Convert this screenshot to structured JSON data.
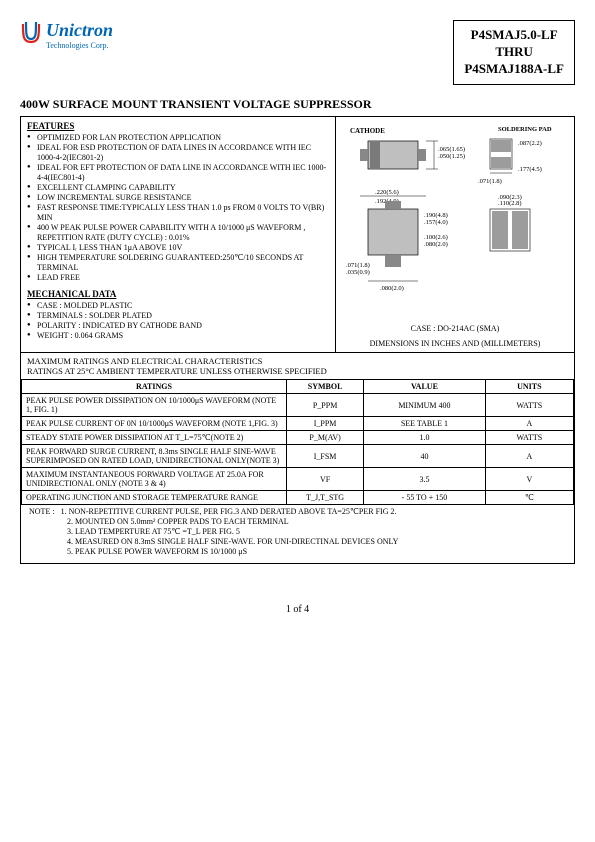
{
  "logo": {
    "brand": "Unictron",
    "tagline": "Technologies Corp.",
    "brand_color": "#0066b3",
    "accent_color": "#d9261c"
  },
  "part_box": {
    "line1": "P4SMAJ5.0-LF",
    "line2": "THRU",
    "line3": "P4SMAJ188A-LF"
  },
  "title": "400W SURFACE MOUNT TRANSIENT VOLTAGE SUPPRESSOR",
  "features": {
    "heading": "FEATURES",
    "items": [
      "OPTIMIZED FOR LAN PROTECTION APPLICATION",
      "IDEAL FOR ESD PROTECTION OF DATA LINES IN ACCORDANCE WITH IEC 1000-4-2(IEC801-2)",
      "IDEAL FOR EFT PROTECTION OF DATA LINE IN ACCORDANCE WITH IEC 1000-4-4(IEC801-4)",
      "EXCELLENT CLAMPING CAPABILITY",
      "LOW INCREMENTAL SURGE RESISTANCE",
      "FAST RESPONSE TIME:TYPICALLY LESS THAN 1.0 ps FROM 0 VOLTS TO V(BR) MIN",
      "400 W PEAK PULSE POWER CAPABILITY WITH A 10/1000 μS WAVEFORM , REPETITION RATE (DUTY CYCLE) : 0.01%",
      "TYPICAL Iᵣ LESS THAN 1μA ABOVE 10V",
      "HIGH TEMPERATURE SOLDERING GUARANTEED:250℃/10 SECONDS AT TERMINAL",
      "LEAD FREE"
    ]
  },
  "mechanical": {
    "heading": "MECHANICAL DATA",
    "items": [
      "CASE : MOLDED PLASTIC",
      "TERMINALS : SOLDER PLATED",
      "POLARITY : INDICATED BY CATHODE BAND",
      "WEIGHT : 0.064 GRAMS"
    ]
  },
  "diagram": {
    "cathode": "CATHODE",
    "soldering_pad": "SOLDERING PAD",
    "dims": {
      "a": ".065(1.65)",
      "a2": ".050(1.25)",
      "b": ".087(2.2)",
      "c": ".071(1.8)",
      "d": ".177(4.5)",
      "e": ".220(5.6)",
      "e2": ".192(4.9)",
      "f": ".190(4.8)",
      "f2": ".157(4.0)",
      "g": ".100(2.6)",
      "g2": ".080(2.0)",
      "h": ".071(1.8)",
      "h2": ".035(0.9)",
      "i": ".080(2.0)",
      "j": ".110(2.8)",
      "j2": ".090(2.3)"
    },
    "case": "CASE : DO-214AC (SMA)",
    "dim_note": "DIMENSIONS IN INCHES AND (MILLIMETERS)"
  },
  "ratings_section": {
    "line1": "MAXIMUM RATINGS AND ELECTRICAL CHARACTERISTICS",
    "line2": "RATINGS AT 25°C AMBIENT TEMPERATURE UNLESS OTHERWISE SPECIFIED"
  },
  "ratings_table": {
    "headers": [
      "RATINGS",
      "SYMBOL",
      "VALUE",
      "UNITS"
    ],
    "rows": [
      [
        "PEAK PULSE POWER DISSIPATION ON 10/1000μS WAVEFORM (NOTE 1, FIG. 1)",
        "P_PPM",
        "MINIMUM 400",
        "WATTS"
      ],
      [
        "PEAK PULSE CURRENT OF 0N 10/1000μS WAVEFORM (NOTE 1,FIG. 3)",
        "I_PPM",
        "SEE TABLE 1",
        "A"
      ],
      [
        "STEADY STATE POWER DISSIPATION AT T_L=75℃(NOTE 2)",
        "P_M(AV)",
        "1.0",
        "WATTS"
      ],
      [
        "PEAK FORWARD SURGE CURRENT, 8.3ms SINGLE HALF SINE-WAVE SUPERIMPOSED ON RATED LOAD, UNIDIRECTIONAL ONLY(NOTE 3)",
        "I_FSM",
        "40",
        "A"
      ],
      [
        "MAXIMUM INSTANTANEOUS FORWARD VOLTAGE AT 25.0A FOR UNIDIRECTIONAL ONLY (NOTE 3 & 4)",
        "VF",
        "3.5",
        "V"
      ],
      [
        "OPERATING JUNCTION AND STORAGE TEMPERATURE RANGE",
        "T_J,T_STG",
        "- 55 TO + 150",
        "℃"
      ]
    ],
    "col_widths": [
      "48%",
      "14%",
      "22%",
      "16%"
    ]
  },
  "notes": {
    "lead": "NOTE :",
    "items": [
      "1. NON-REPETITIVE CURRENT PULSE, PER FIG.3 AND DERATED ABOVE TA=25℃PER FIG 2.",
      "2. MOUNTED ON 5.0mm² COPPER PADS TO EACH TERMINAL",
      "3. LEAD TEMPERTURE AT 75℃ =T_L PER FIG. 5",
      "4. MEASURED ON 8.3mS SINGLE HALF SINE-WAVE. FOR UNI-DIRECTINAL DEVICES ONLY",
      "5. PEAK PULSE POWER WAVEFORM IS 10/1000 μS"
    ]
  },
  "page": "1 of 4"
}
